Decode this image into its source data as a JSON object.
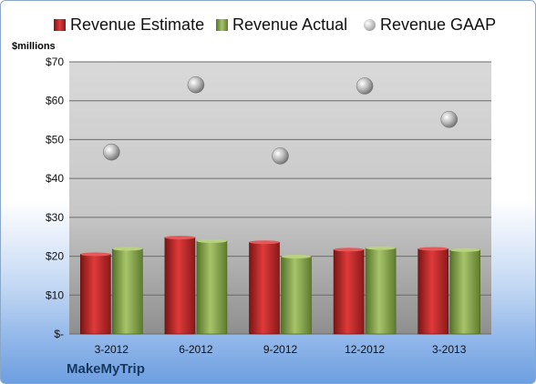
{
  "chart_data": {
    "type": "bar",
    "title": "",
    "ylabel": "$millions",
    "xlabel": "",
    "ylim": [
      0,
      70
    ],
    "yticks": [
      "$-",
      "$10",
      "$20",
      "$30",
      "$40",
      "$50",
      "$60",
      "$70"
    ],
    "categories": [
      "3-2012",
      "6-2012",
      "9-2012",
      "12-2012",
      "3-2013"
    ],
    "series": [
      {
        "name": "Revenue Estimate",
        "type": "bar",
        "color": "#c0252a",
        "values": [
          20.5,
          24.8,
          23.6,
          21.7,
          21.9
        ]
      },
      {
        "name": "Revenue Actual",
        "type": "bar",
        "color": "#8faa4f",
        "values": [
          21.9,
          23.9,
          19.9,
          22.1,
          21.6
        ]
      },
      {
        "name": "Revenue GAAP",
        "type": "scatter",
        "color": "#a6a6a6",
        "values": [
          46.8,
          64.1,
          45.8,
          63.8,
          55.2
        ]
      }
    ],
    "grid": true,
    "legend_position": "top"
  },
  "brand": "MakeMyTrip"
}
